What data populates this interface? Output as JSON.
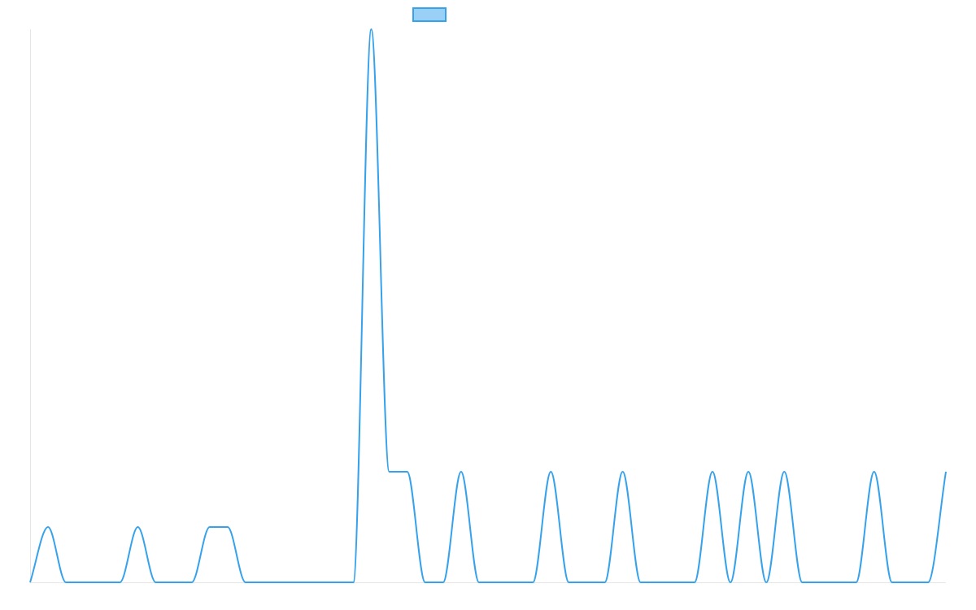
{
  "chart_data": {
    "type": "line",
    "title": "",
    "xlabel": "",
    "ylabel": "",
    "smooth": true,
    "grid": false,
    "axes_labels_visible": false,
    "legend": {
      "placement": "top-center",
      "label": ""
    },
    "colors": {
      "line": "#36a2eb",
      "legend_fill": "#9ad0f5",
      "axis": "#e5e5e5"
    },
    "ylim": [
      0,
      10
    ],
    "x": [
      0,
      1,
      2,
      3,
      4,
      5,
      6,
      7,
      8,
      9,
      10,
      11,
      12,
      13,
      14,
      15,
      16,
      17,
      18,
      19,
      20,
      21,
      22,
      23,
      24,
      25,
      26,
      27,
      28,
      29,
      30,
      31,
      32,
      33,
      34,
      35,
      36,
      37,
      38,
      39,
      40,
      41,
      42,
      43,
      44,
      45,
      46,
      47,
      48,
      49,
      50,
      51
    ],
    "series": [
      {
        "name": "",
        "values": [
          0,
          1,
          0,
          0,
          0,
          0,
          1,
          0,
          0,
          0,
          1,
          1,
          0,
          0,
          0,
          0,
          0,
          0,
          0,
          10,
          2,
          2,
          0,
          0,
          2,
          0,
          0,
          0,
          0,
          2,
          0,
          0,
          0,
          2,
          0,
          0,
          0,
          0,
          2,
          0,
          2,
          0,
          2,
          0,
          0,
          0,
          0,
          2,
          0,
          0,
          0,
          2
        ]
      }
    ]
  }
}
